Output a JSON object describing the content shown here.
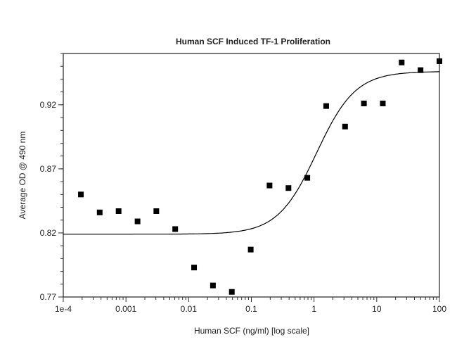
{
  "chart_data": {
    "type": "scatter",
    "title": "Human SCF Induced TF-1 Proliferation",
    "xlabel": "Human SCF (ng/ml) [log scale]",
    "ylabel": "Average OD @ 490 nm",
    "xscale": "log",
    "xlim": [
      0.0001,
      100
    ],
    "ylim": [
      0.77,
      0.96
    ],
    "grid": false,
    "x_ticks": [
      {
        "value": 0.0001,
        "label": "1e-4"
      },
      {
        "value": 0.001,
        "label": "0.001"
      },
      {
        "value": 0.01,
        "label": "0.01"
      },
      {
        "value": 0.1,
        "label": "0.1"
      },
      {
        "value": 1,
        "label": "1"
      },
      {
        "value": 10,
        "label": "10"
      },
      {
        "value": 100,
        "label": "100"
      }
    ],
    "y_ticks": [
      {
        "value": 0.77,
        "label": "0.77"
      },
      {
        "value": 0.82,
        "label": "0.82"
      },
      {
        "value": 0.87,
        "label": "0.87"
      },
      {
        "value": 0.92,
        "label": "0.92"
      }
    ],
    "points": {
      "x": [
        0.000191,
        0.000381,
        0.000763,
        0.00153,
        0.00305,
        0.0061,
        0.0122,
        0.0244,
        0.0488,
        0.0977,
        0.195,
        0.391,
        0.781,
        1.5625,
        3.125,
        6.25,
        12.5,
        25,
        50,
        100
      ],
      "y": [
        0.85,
        0.836,
        0.837,
        0.829,
        0.837,
        0.823,
        0.793,
        0.779,
        0.774,
        0.807,
        0.857,
        0.855,
        0.863,
        0.919,
        0.903,
        0.921,
        0.921,
        0.953,
        0.947,
        0.954
      ]
    },
    "fit_curve": {
      "model": "4PL",
      "bottom": 0.819,
      "top": 0.946,
      "ec50": 1.1,
      "hill": 1.4
    },
    "marker_color": "#000000",
    "line_color": "#000000"
  }
}
